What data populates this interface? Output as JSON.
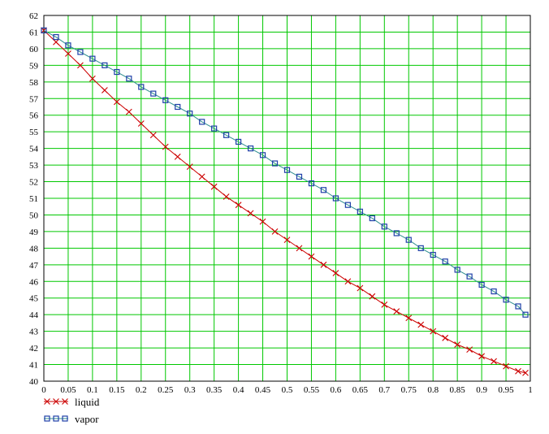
{
  "chart_data": {
    "type": "line",
    "title": "",
    "xlabel": "",
    "ylabel": "",
    "xlim": [
      0,
      1
    ],
    "ylim": [
      40,
      62
    ],
    "x_ticks": [
      "0",
      "0.05",
      "0.1",
      "0.15",
      "0.2",
      "0.25",
      "0.3",
      "0.35",
      "0.4",
      "0.45",
      "0.5",
      "0.55",
      "0.6",
      "0.65",
      "0.7",
      "0.75",
      "0.8",
      "0.85",
      "0.9",
      "0.95",
      "1"
    ],
    "y_ticks": [
      "40",
      "41",
      "42",
      "43",
      "44",
      "45",
      "46",
      "47",
      "48",
      "49",
      "50",
      "51",
      "52",
      "53",
      "54",
      "55",
      "56",
      "57",
      "58",
      "59",
      "60",
      "61",
      "62"
    ],
    "grid": true,
    "grid_color": "#00c800",
    "legend_position": "bottom-left",
    "series": [
      {
        "name": "liquid",
        "color": "#cc0000",
        "line_color": "#cc0000",
        "marker": "x-icon",
        "x": [
          0,
          0.025,
          0.05,
          0.075,
          0.1,
          0.125,
          0.15,
          0.175,
          0.2,
          0.225,
          0.25,
          0.275,
          0.3,
          0.325,
          0.35,
          0.375,
          0.4,
          0.425,
          0.45,
          0.475,
          0.5,
          0.525,
          0.55,
          0.575,
          0.6,
          0.625,
          0.65,
          0.675,
          0.7,
          0.725,
          0.75,
          0.775,
          0.8,
          0.825,
          0.85,
          0.875,
          0.9,
          0.925,
          0.95,
          0.975,
          0.99
        ],
        "y": [
          61.1,
          60.4,
          59.7,
          59.0,
          58.2,
          57.5,
          56.8,
          56.2,
          55.5,
          54.8,
          54.1,
          53.5,
          52.9,
          52.3,
          51.7,
          51.1,
          50.6,
          50.1,
          49.6,
          49.0,
          48.5,
          48.0,
          47.5,
          47.0,
          46.5,
          46.0,
          45.6,
          45.1,
          44.6,
          44.2,
          43.8,
          43.4,
          43.0,
          42.6,
          42.2,
          41.9,
          41.5,
          41.2,
          40.9,
          40.6,
          40.5
        ]
      },
      {
        "name": "vapor",
        "color": "#1f3fa8",
        "line_color": "#2f8f8f",
        "marker": "square-icon",
        "x": [
          0,
          0.025,
          0.05,
          0.075,
          0.1,
          0.125,
          0.15,
          0.175,
          0.2,
          0.225,
          0.25,
          0.275,
          0.3,
          0.325,
          0.35,
          0.375,
          0.4,
          0.425,
          0.45,
          0.475,
          0.5,
          0.525,
          0.55,
          0.575,
          0.6,
          0.625,
          0.65,
          0.675,
          0.7,
          0.725,
          0.75,
          0.775,
          0.8,
          0.825,
          0.85,
          0.875,
          0.9,
          0.925,
          0.95,
          0.975,
          0.99
        ],
        "y": [
          61.1,
          60.7,
          60.2,
          59.8,
          59.4,
          59.0,
          58.6,
          58.2,
          57.7,
          57.3,
          56.9,
          56.5,
          56.1,
          55.6,
          55.2,
          54.8,
          54.4,
          54.0,
          53.6,
          53.1,
          52.7,
          52.3,
          51.9,
          51.5,
          51.0,
          50.6,
          50.2,
          49.8,
          49.3,
          48.9,
          48.5,
          48.0,
          47.6,
          47.2,
          46.7,
          46.3,
          45.8,
          45.4,
          44.9,
          44.5,
          44.0
        ]
      }
    ]
  }
}
